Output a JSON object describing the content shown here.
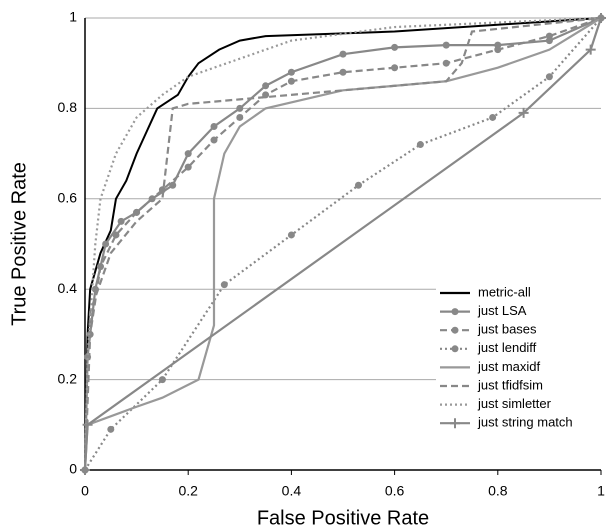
{
  "chart_data": {
    "type": "line",
    "xlabel": "False Positive Rate",
    "ylabel": "True Positive Rate",
    "xlim": [
      0,
      1
    ],
    "ylim": [
      0,
      1
    ],
    "xticks": [
      0,
      0.2,
      0.4,
      0.6,
      0.8,
      1
    ],
    "yticks": [
      0,
      0.2,
      0.4,
      0.6,
      0.8,
      1
    ],
    "grid": true,
    "legend": "lower right",
    "series": [
      {
        "name": "metric-all",
        "color": "#000000",
        "dash": "solid",
        "marker": "none",
        "x": [
          0,
          0.005,
          0.01,
          0.03,
          0.05,
          0.06,
          0.08,
          0.1,
          0.12,
          0.14,
          0.18,
          0.2,
          0.22,
          0.26,
          0.3,
          0.35,
          0.6,
          1
        ],
        "values": [
          0,
          0.3,
          0.4,
          0.48,
          0.53,
          0.6,
          0.64,
          0.7,
          0.75,
          0.8,
          0.83,
          0.87,
          0.9,
          0.93,
          0.95,
          0.96,
          0.97,
          1
        ]
      },
      {
        "name": "just LSA",
        "color": "#888888",
        "dash": "solid",
        "marker": "circle",
        "x": [
          0,
          0.005,
          0.02,
          0.04,
          0.07,
          0.1,
          0.13,
          0.17,
          0.2,
          0.25,
          0.3,
          0.35,
          0.4,
          0.5,
          0.6,
          0.7,
          0.8,
          0.9,
          1
        ],
        "values": [
          0,
          0.25,
          0.4,
          0.5,
          0.55,
          0.57,
          0.6,
          0.63,
          0.7,
          0.76,
          0.8,
          0.85,
          0.88,
          0.92,
          0.935,
          0.94,
          0.94,
          0.95,
          1
        ]
      },
      {
        "name": "just bases",
        "color": "#888888",
        "dash": "dashed",
        "marker": "circle",
        "x": [
          0,
          0.01,
          0.03,
          0.06,
          0.1,
          0.15,
          0.2,
          0.25,
          0.3,
          0.35,
          0.4,
          0.5,
          0.6,
          0.7,
          0.8,
          0.9,
          1
        ],
        "values": [
          0,
          0.3,
          0.45,
          0.52,
          0.57,
          0.62,
          0.67,
          0.73,
          0.78,
          0.83,
          0.86,
          0.88,
          0.89,
          0.9,
          0.93,
          0.96,
          1
        ]
      },
      {
        "name": "just lendiff",
        "color": "#888888",
        "dash": "dotted",
        "marker": "circle",
        "x": [
          0,
          0.05,
          0.15,
          0.27,
          0.4,
          0.53,
          0.65,
          0.79,
          0.9,
          1
        ],
        "values": [
          0,
          0.09,
          0.2,
          0.41,
          0.52,
          0.63,
          0.72,
          0.78,
          0.87,
          1
        ]
      },
      {
        "name": "just maxidf",
        "color": "#999999",
        "dash": "solid",
        "marker": "none",
        "x": [
          0,
          0.005,
          0.1,
          0.15,
          0.22,
          0.25,
          0.25,
          0.27,
          0.3,
          0.35,
          0.5,
          0.7,
          0.8,
          0.9,
          1
        ],
        "values": [
          0,
          0.1,
          0.14,
          0.16,
          0.2,
          0.32,
          0.6,
          0.7,
          0.76,
          0.8,
          0.84,
          0.86,
          0.89,
          0.93,
          1
        ]
      },
      {
        "name": "just tfidfsim",
        "color": "#888888",
        "dash": "dashed",
        "marker": "none",
        "x": [
          0,
          0.01,
          0.05,
          0.1,
          0.15,
          0.17,
          0.2,
          0.3,
          0.7,
          0.73,
          0.75,
          1
        ],
        "values": [
          0,
          0.35,
          0.48,
          0.55,
          0.6,
          0.8,
          0.81,
          0.82,
          0.86,
          0.9,
          0.97,
          1
        ]
      },
      {
        "name": "just simletter",
        "color": "#999999",
        "dash": "dotted",
        "marker": "none",
        "x": [
          0,
          0.005,
          0.02,
          0.03,
          0.06,
          0.1,
          0.15,
          0.2,
          0.3,
          0.4,
          0.6,
          1
        ],
        "values": [
          0,
          0.25,
          0.5,
          0.6,
          0.7,
          0.78,
          0.83,
          0.87,
          0.91,
          0.95,
          0.98,
          1
        ]
      },
      {
        "name": "just string match",
        "color": "#888888",
        "dash": "solid",
        "marker": "plus",
        "x": [
          0,
          0.005,
          0.85,
          0.98,
          1
        ],
        "values": [
          0,
          0.1,
          0.79,
          0.93,
          1
        ]
      }
    ]
  }
}
